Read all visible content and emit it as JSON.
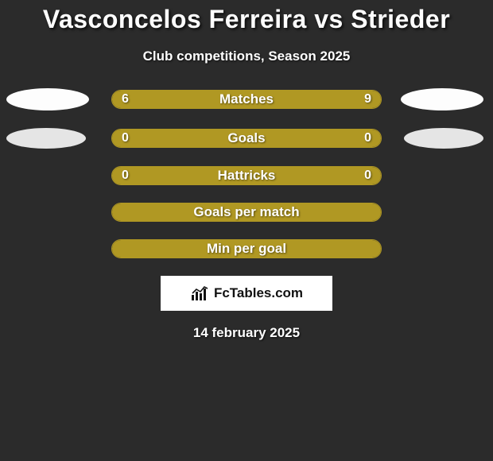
{
  "title": "Vasconcelos Ferreira vs Strieder",
  "subtitle": "Club competitions, Season 2025",
  "date": "14 february 2025",
  "bars": [
    {
      "label": "Matches",
      "left_val": "6",
      "right_val": "9",
      "left_pct": 40,
      "right_pct": 60,
      "ellipse_left": {
        "bg": "#fdfdfd",
        "w": 104,
        "h": 28,
        "show": true
      },
      "ellipse_right": {
        "bg": "#fdfdfd",
        "w": 104,
        "h": 28,
        "show": true
      }
    },
    {
      "label": "Goals",
      "left_val": "0",
      "right_val": "0",
      "left_pct": 0,
      "right_pct": 100,
      "ellipse_left": {
        "bg": "#e5e5e5",
        "w": 100,
        "h": 26,
        "show": true
      },
      "ellipse_right": {
        "bg": "#e5e5e5",
        "w": 100,
        "h": 26,
        "show": true
      }
    },
    {
      "label": "Hattricks",
      "left_val": "0",
      "right_val": "0",
      "left_pct": 0,
      "right_pct": 100,
      "ellipse_left": {
        "show": false
      },
      "ellipse_right": {
        "show": false
      }
    },
    {
      "label": "Goals per match",
      "left_val": "",
      "right_val": "",
      "left_pct": 100,
      "right_pct": 0,
      "ellipse_left": {
        "show": false
      },
      "ellipse_right": {
        "show": false
      }
    },
    {
      "label": "Min per goal",
      "left_val": "",
      "right_val": "",
      "left_pct": 100,
      "right_pct": 0,
      "ellipse_left": {
        "show": false
      },
      "ellipse_right": {
        "show": false
      }
    }
  ],
  "logo": {
    "text": "FcTables.com",
    "bar_color": "#111"
  },
  "colors": {
    "background": "#2b2b2b",
    "accent": "#b09823",
    "text": "#ffffff"
  }
}
